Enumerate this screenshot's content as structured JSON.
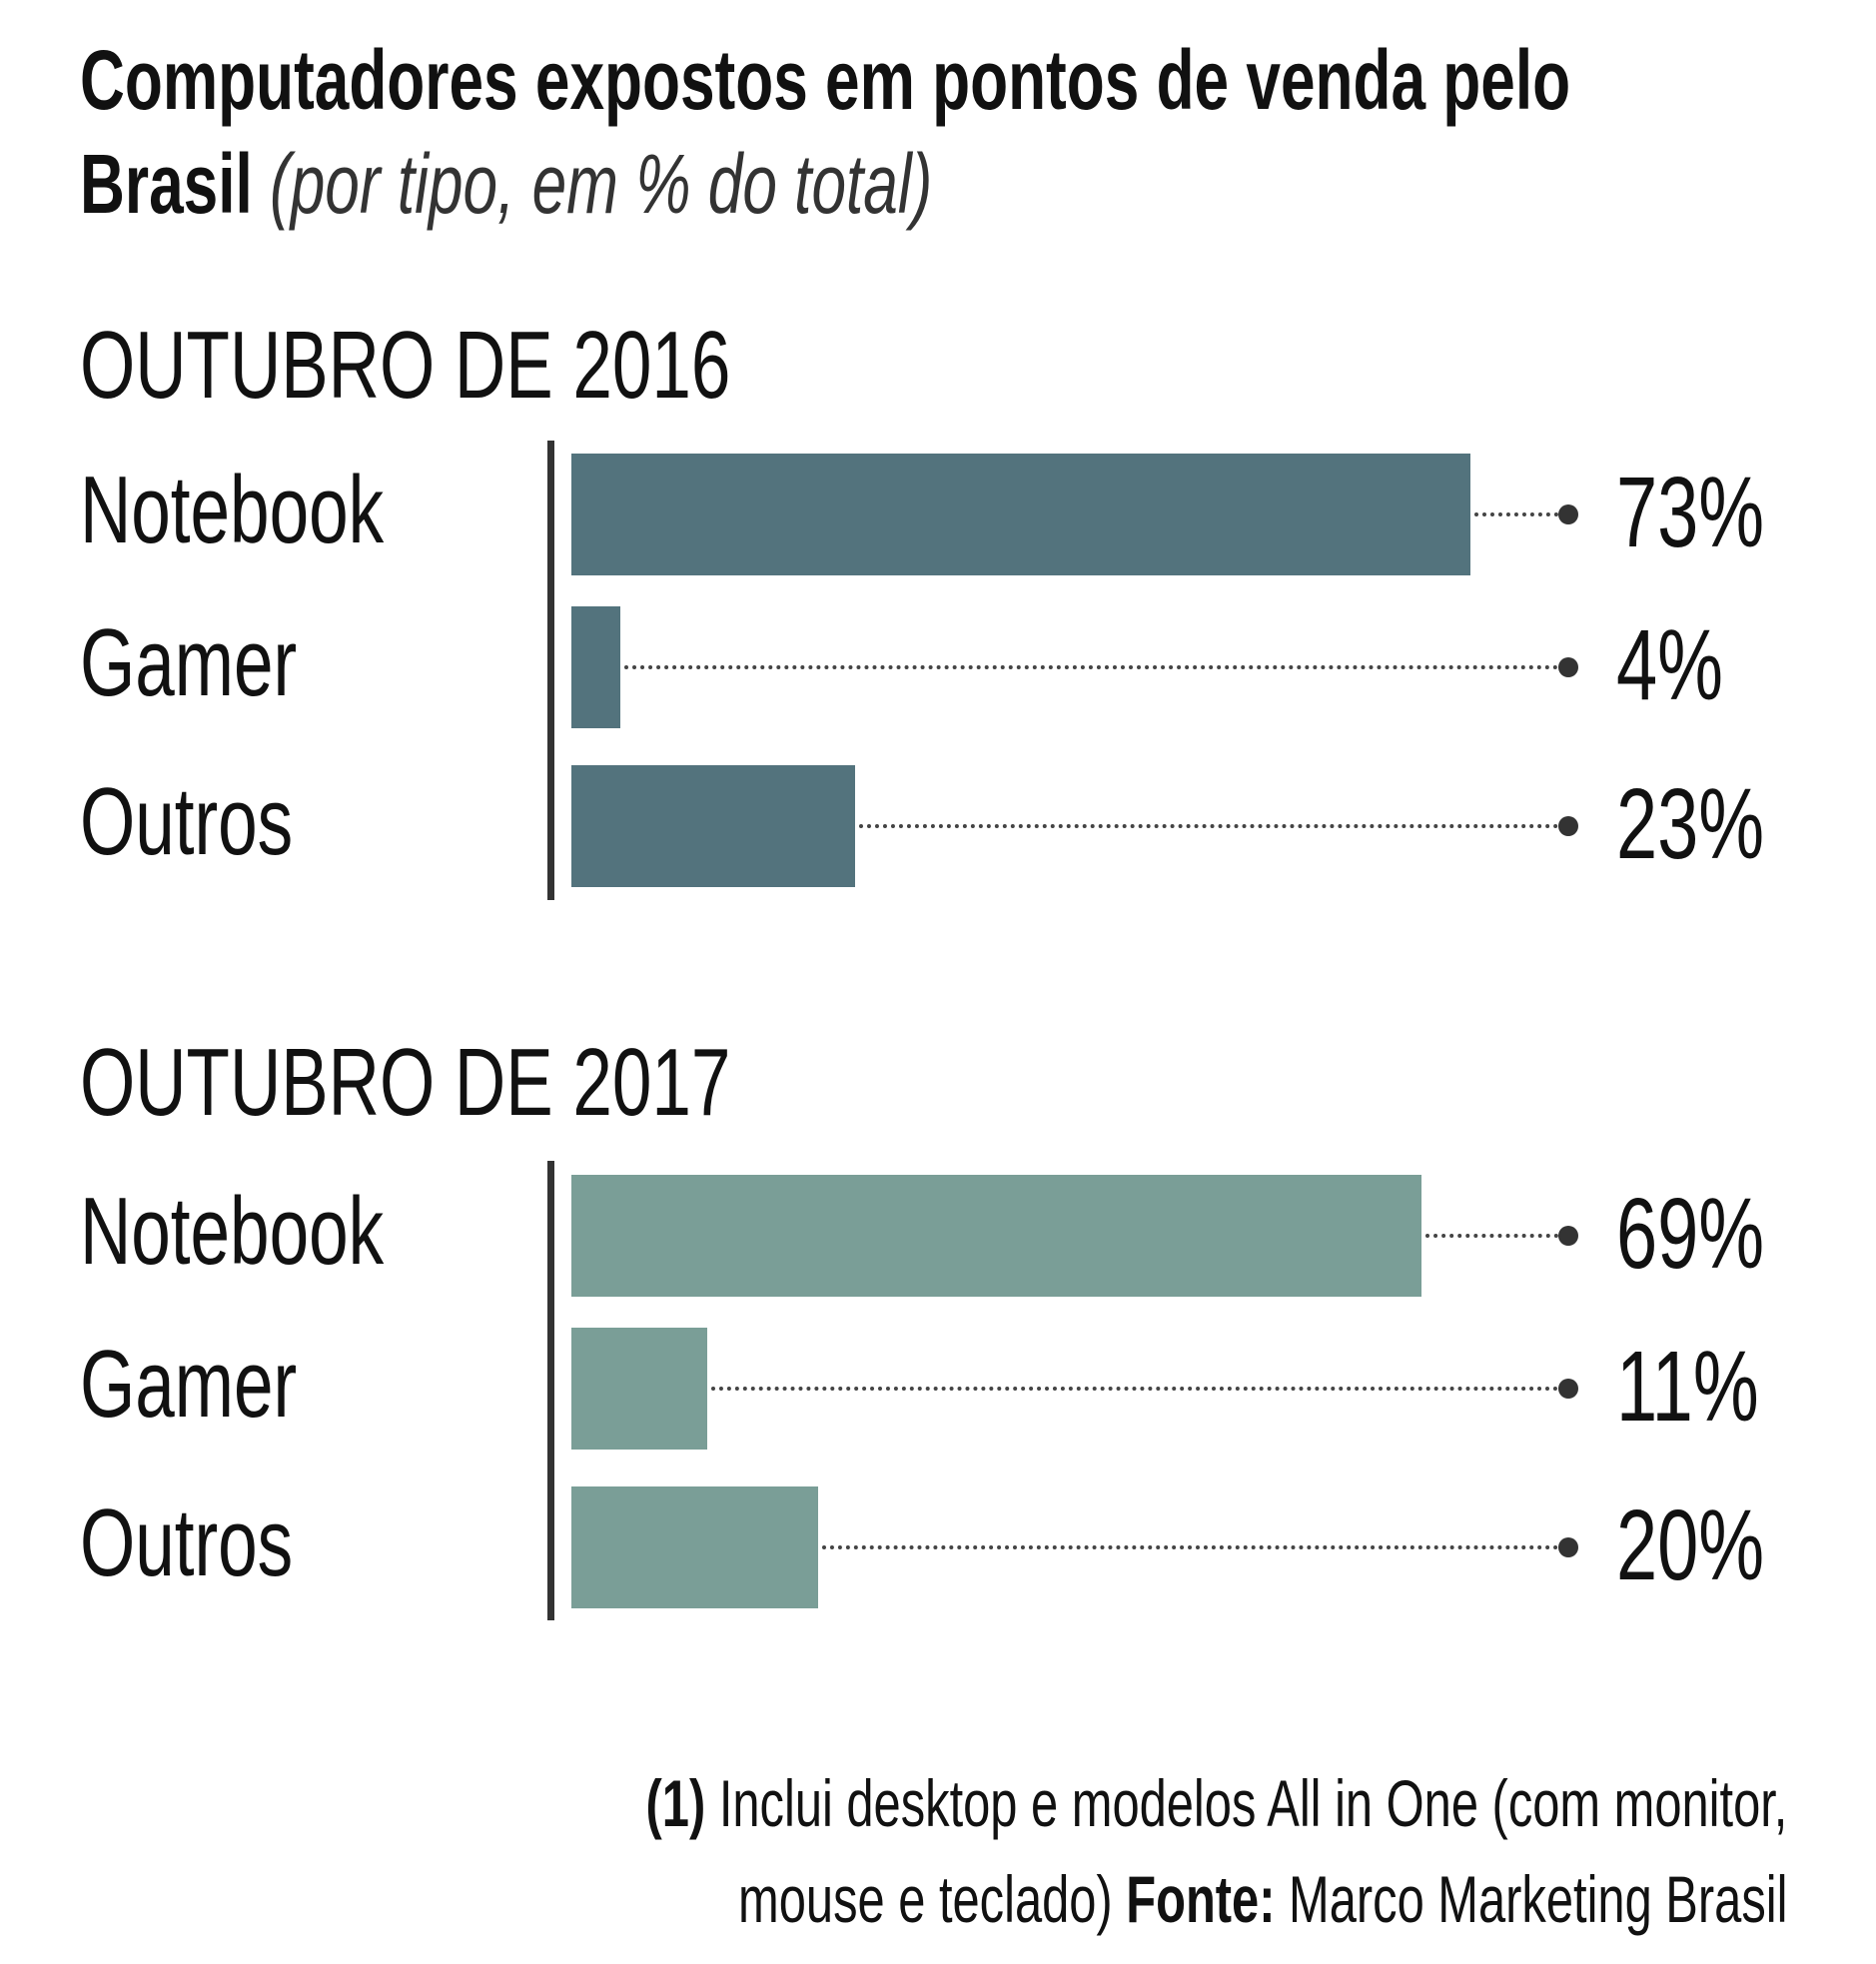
{
  "chart_data": {
    "type": "bar",
    "title": "Computadores expostos em pontos de venda pelo Brasil",
    "subtitle": "(por tipo, em % do total)",
    "colors": {
      "2016": "#53737d",
      "2017": "#7a9e97"
    },
    "panels": [
      {
        "heading": "OUTUBRO DE 2016",
        "categories": [
          "Notebook",
          "Gamer",
          "Outros"
        ],
        "values": [
          73,
          4,
          23
        ],
        "labels": [
          "73%",
          "4%",
          "23%"
        ]
      },
      {
        "heading": "OUTUBRO DE 2017",
        "categories": [
          "Notebook",
          "Gamer",
          "Outros"
        ],
        "values": [
          69,
          11,
          20
        ],
        "labels": [
          "69%",
          "11%",
          "20%"
        ]
      }
    ],
    "xlim": [
      0,
      100
    ]
  },
  "footnote": {
    "marker": "(1)",
    "line1": "Inclui desktop e modelos All in One (com monitor,",
    "line2": "mouse e teclado)",
    "source_label": "Fonte:",
    "source": "Marco Marketing Brasil"
  }
}
